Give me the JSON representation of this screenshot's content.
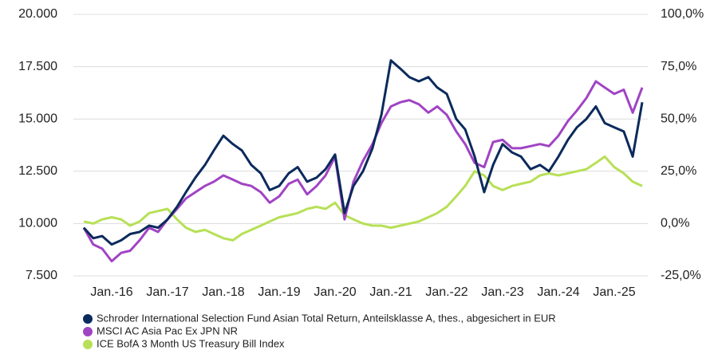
{
  "chart_data": {
    "type": "line",
    "x": [
      2015.5,
      2015.67,
      2015.83,
      2016,
      2016.17,
      2016.33,
      2016.5,
      2016.67,
      2016.83,
      2017,
      2017.17,
      2017.33,
      2017.5,
      2017.67,
      2017.83,
      2018,
      2018.17,
      2018.33,
      2018.5,
      2018.67,
      2018.83,
      2019,
      2019.17,
      2019.33,
      2019.5,
      2019.67,
      2019.83,
      2020,
      2020.17,
      2020.33,
      2020.5,
      2020.67,
      2020.83,
      2021,
      2021.17,
      2021.33,
      2021.5,
      2021.67,
      2021.83,
      2022,
      2022.17,
      2022.33,
      2022.5,
      2022.67,
      2022.83,
      2023,
      2023.17,
      2023.33,
      2023.5,
      2023.67,
      2023.83,
      2024,
      2024.17,
      2024.33,
      2024.5,
      2024.67,
      2024.83,
      2025,
      2025.17,
      2025.33,
      2025.5
    ],
    "series": [
      {
        "name": "Schroder International Selection Fund Asian Total Return, Anteilsklasse A, thes., abgesichert in EUR",
        "color": "#0b2a5c",
        "values": [
          9800,
          9300,
          9400,
          9000,
          9200,
          9500,
          9600,
          9900,
          9800,
          10200,
          10800,
          11500,
          12200,
          12800,
          13500,
          14200,
          13800,
          13500,
          12800,
          12400,
          11600,
          11800,
          12400,
          12700,
          12000,
          12200,
          12600,
          13300,
          10500,
          11800,
          12500,
          13600,
          15200,
          17800,
          17400,
          17000,
          16800,
          17000,
          16500,
          16200,
          15000,
          14500,
          13200,
          11500,
          12800,
          13800,
          13400,
          13200,
          12600,
          12800,
          12500,
          13200,
          14000,
          14600,
          15000,
          15600,
          14800,
          14600,
          14400,
          13200,
          15800
        ]
      },
      {
        "name": "MSCI AC Asia Pac Ex JPN NR",
        "color": "#a044c4",
        "values": [
          9800,
          9000,
          8800,
          8200,
          8600,
          8700,
          9200,
          9800,
          9600,
          10200,
          10700,
          11200,
          11500,
          11800,
          12000,
          12300,
          12100,
          11900,
          11800,
          11500,
          11000,
          11300,
          11900,
          12100,
          11400,
          11800,
          12300,
          13200,
          10200,
          12000,
          13000,
          13800,
          14800,
          15600,
          15800,
          15900,
          15700,
          15300,
          15600,
          15200,
          14400,
          13800,
          12900,
          12700,
          13900,
          14000,
          13600,
          13600,
          13700,
          13800,
          13700,
          14200,
          14900,
          15400,
          16000,
          16800,
          16500,
          16200,
          16400,
          15300,
          16500
        ]
      },
      {
        "name": "ICE BofA 3 Month US Treasury Bill Index",
        "color": "#b7e057",
        "values": [
          10100,
          10000,
          10200,
          10300,
          10200,
          9900,
          10100,
          10500,
          10600,
          10700,
          10200,
          9800,
          9600,
          9700,
          9500,
          9300,
          9200,
          9500,
          9700,
          9900,
          10100,
          10300,
          10400,
          10500,
          10700,
          10800,
          10700,
          11000,
          10400,
          10200,
          10000,
          9900,
          9900,
          9800,
          9900,
          10000,
          10100,
          10300,
          10500,
          10800,
          11300,
          11800,
          12500,
          12300,
          11800,
          11600,
          11800,
          11900,
          12000,
          12300,
          12400,
          12300,
          12400,
          12500,
          12600,
          12900,
          13200,
          12700,
          12400,
          12000,
          11800
        ]
      }
    ],
    "xlim": [
      2015.5,
      2025.5
    ],
    "xticks": [
      {
        "value": 2016,
        "label": "Jan.-16"
      },
      {
        "value": 2017,
        "label": "Jan.-17"
      },
      {
        "value": 2018,
        "label": "Jan.-18"
      },
      {
        "value": 2019,
        "label": "Jan.-19"
      },
      {
        "value": 2020,
        "label": "Jan.-20"
      },
      {
        "value": 2021,
        "label": "Jan.-21"
      },
      {
        "value": 2022,
        "label": "Jan.-22"
      },
      {
        "value": 2023,
        "label": "Jan.-23"
      },
      {
        "value": 2024,
        "label": "Jan.-24"
      },
      {
        "value": 2025,
        "label": "Jan.-25"
      }
    ],
    "ylim": [
      7500,
      20000
    ],
    "yticks": [
      {
        "value": 7500,
        "label": "7.500"
      },
      {
        "value": 10000,
        "label": "10.000"
      },
      {
        "value": 12500,
        "label": "12.500"
      },
      {
        "value": 15000,
        "label": "15.000"
      },
      {
        "value": 17500,
        "label": "17.500"
      },
      {
        "value": 20000,
        "label": "20.000"
      }
    ],
    "y2lim": [
      -25,
      100
    ],
    "y2ticks": [
      {
        "value": -25,
        "label": "-25,0%"
      },
      {
        "value": 0,
        "label": "0,0%"
      },
      {
        "value": 25,
        "label": "25,0%"
      },
      {
        "value": 50,
        "label": "50,0%"
      },
      {
        "value": 75,
        "label": "75,0%"
      },
      {
        "value": 100,
        "label": "100,0%"
      }
    ],
    "grid": true
  }
}
